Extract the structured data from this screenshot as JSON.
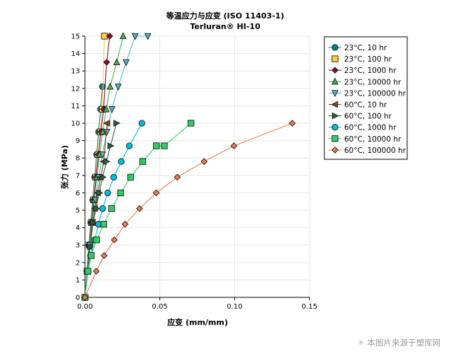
{
  "chart_data": {
    "type": "line",
    "title": "等温应力与应变 (ISO 11403-1)",
    "subtitle": "Terluran® HI-10",
    "xlabel": "应变 (mm/mm)",
    "ylabel": "张力 (MPa)",
    "xlim": [
      0,
      0.15
    ],
    "ylim": [
      0,
      15
    ],
    "xticks": [
      "0.00",
      "0.05",
      "0.10",
      "0.15"
    ],
    "yticks": [
      "0",
      "1",
      "2",
      "3",
      "4",
      "5",
      "6",
      "7",
      "8",
      "9",
      "10",
      "11",
      "12",
      "13",
      "14",
      "15"
    ],
    "grid": true,
    "legend_position": "right",
    "series": [
      {
        "name": "23°C, 10 hr",
        "color": "#007F7F",
        "marker": "circle",
        "x": [
          0,
          0.0013,
          0.0026,
          0.0039,
          0.0052,
          0.0065,
          0.0078,
          0.0091,
          0.0104,
          0.0117
        ],
        "y": [
          0,
          1.5,
          3,
          4.3,
          5.6,
          6.9,
          8.2,
          9.5,
          10.8,
          12.1
        ]
      },
      {
        "name": "23°C, 100 hr",
        "color": "#FFCC44",
        "marker": "square",
        "x": [
          0,
          0.0014,
          0.0029,
          0.0043,
          0.0058,
          0.0072,
          0.0087,
          0.0102,
          0.0116,
          0.013
        ],
        "y": [
          0,
          1.5,
          3,
          4.3,
          5.6,
          6.9,
          8.2,
          9.5,
          10.8,
          15
        ]
      },
      {
        "name": "23°C, 1000 hr",
        "color": "#8B0A3A",
        "marker": "diamond",
        "x": [
          0,
          0.0014,
          0.0029,
          0.0044,
          0.0059,
          0.0074,
          0.009,
          0.0106,
          0.0124,
          0.0145,
          0.0165
        ],
        "y": [
          0,
          1.5,
          3,
          4.3,
          5.6,
          6.9,
          8.2,
          9.5,
          10.8,
          13.5,
          15
        ]
      },
      {
        "name": "23°C, 10000 hr",
        "color": "#4CAF50",
        "marker": "triangle-up",
        "x": [
          0,
          0.0015,
          0.003,
          0.0046,
          0.0062,
          0.0079,
          0.0098,
          0.0118,
          0.0142,
          0.0168,
          0.0212,
          0.0255
        ],
        "y": [
          0,
          1.5,
          3,
          4.3,
          5.6,
          6.9,
          8.2,
          9.5,
          10.8,
          12.1,
          13.5,
          15
        ]
      },
      {
        "name": "23°C, 100000 hr",
        "color": "#4DB6C8",
        "marker": "triangle-down",
        "x": [
          0,
          0.0016,
          0.0033,
          0.0051,
          0.007,
          0.0092,
          0.0117,
          0.0146,
          0.018,
          0.0222,
          0.0275,
          0.0335,
          0.042
        ],
        "y": [
          0,
          1.5,
          3,
          4.3,
          5.6,
          6.9,
          8.2,
          9.5,
          10.8,
          12.1,
          13.5,
          15,
          15
        ]
      },
      {
        "name": "60°C, 10 hr",
        "color": "#8B4513",
        "marker": "triangle-left",
        "x": [
          0,
          0.0016,
          0.0033,
          0.005,
          0.0067,
          0.0086,
          0.0105,
          0.0125,
          0.0148
        ],
        "y": [
          0,
          1.5,
          2.9,
          4.3,
          5.1,
          6,
          6.9,
          7.8,
          10
        ]
      },
      {
        "name": "60°C, 100 hr",
        "color": "#2E5E3E",
        "marker": "triangle-right",
        "x": [
          0,
          0.0017,
          0.0035,
          0.0054,
          0.0074,
          0.0095,
          0.0118,
          0.0143,
          0.017,
          0.021
        ],
        "y": [
          0,
          1.5,
          2.9,
          4.3,
          5.1,
          6,
          6.9,
          7.8,
          8.7,
          10
        ]
      },
      {
        "name": "60°C, 1000 hr",
        "color": "#00BCD4",
        "marker": "circle",
        "x": [
          0,
          0.0018,
          0.0037,
          0.0065,
          0.009,
          0.0118,
          0.0152,
          0.0192,
          0.0242,
          0.0296,
          0.038
        ],
        "y": [
          0,
          1.5,
          2.4,
          3.3,
          4.2,
          5.1,
          6,
          6.9,
          7.8,
          8.7,
          10
        ]
      },
      {
        "name": "60°C, 10000 hr",
        "color": "#33CC66",
        "marker": "square",
        "x": [
          0,
          0.002,
          0.0042,
          0.0078,
          0.0125,
          0.0178,
          0.0238,
          0.0305,
          0.0386,
          0.0477,
          0.053,
          0.0708
        ],
        "y": [
          0,
          1.5,
          2.4,
          3.3,
          4.2,
          5.1,
          6,
          6.9,
          7.8,
          8.7,
          8.7,
          10
        ]
      },
      {
        "name": "60°C, 100000 hr",
        "color": "#E8804A",
        "marker": "diamond",
        "x": [
          0,
          0.0075,
          0.0128,
          0.0196,
          0.0268,
          0.0365,
          0.0476,
          0.0617,
          0.0796,
          0.0995,
          0.1385
        ],
        "y": [
          0,
          1.5,
          2.4,
          3.3,
          4.2,
          5.1,
          6,
          6.9,
          7.8,
          8.7,
          10
        ]
      }
    ]
  },
  "watermark": {
    "star": "✳",
    "text": "本图片来源于塑库网"
  }
}
